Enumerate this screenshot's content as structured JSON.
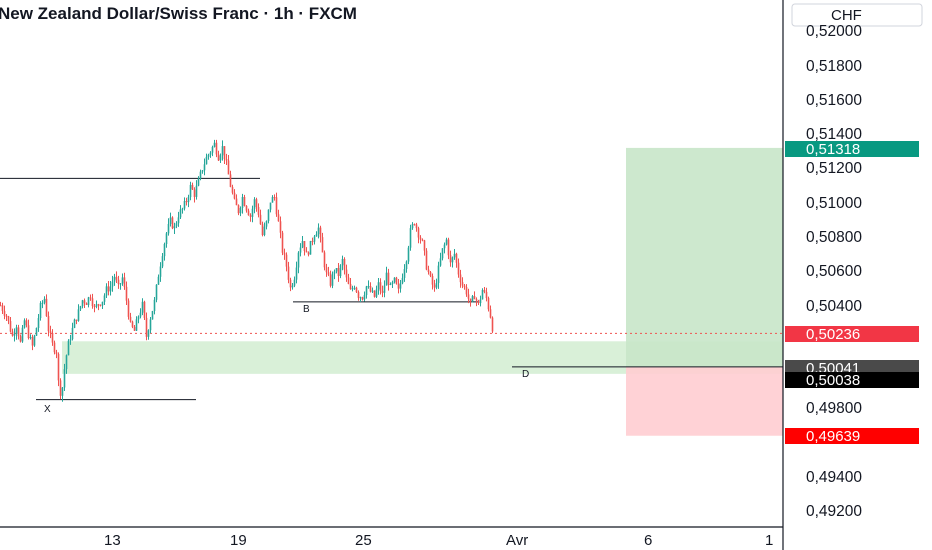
{
  "header": {
    "title": "New Zealand Dollar/Swiss Franc · 1h · FXCM"
  },
  "price_axis": {
    "currency": "CHF",
    "tick_labels": [
      "0,52000",
      "0,51800",
      "0,51600",
      "0,51400",
      "0,51200",
      "0,51000",
      "0,50800",
      "0,50600",
      "0,50400",
      "0,49800",
      "0,49400",
      "0,49200"
    ]
  },
  "time_axis": {
    "tick_labels": [
      "13",
      "19",
      "25",
      "Avr",
      "6",
      "1"
    ]
  },
  "badges": {
    "target": {
      "text": "0,51318",
      "color": "#089981"
    },
    "current": {
      "text": "0,50236",
      "color": "#f23645"
    },
    "level_a": {
      "text": "0,50041",
      "color": "#4a4a4a"
    },
    "level_b": {
      "text": "0,50038",
      "color": "#000000"
    },
    "stop": {
      "text": "0,49639",
      "color": "#ff0000"
    }
  },
  "annotations": {
    "x_label": "X",
    "b_label": "B",
    "d_label": "D"
  },
  "colors": {
    "up": "#26a69a",
    "down": "#ef5350",
    "profit_zone": "#c8e6c9",
    "loss_zone": "#ffcdd2",
    "demand_zone": "#d7efd6"
  },
  "chart_data": {
    "type": "candlestick",
    "title": "New Zealand Dollar/Swiss Franc · 1h · FXCM",
    "ylim": [
      0.4912,
      0.5204
    ],
    "horizontal_levels": [
      {
        "label": "",
        "value": 0.5114
      },
      {
        "label": "B",
        "value": 0.5042
      },
      {
        "label": "X",
        "value": 0.4985
      },
      {
        "label": "D",
        "value": 0.50041
      }
    ],
    "long_position": {
      "entry": 0.50041,
      "target": 0.51318,
      "stop": 0.49639
    },
    "zone": [
      0.5,
      0.5019
    ],
    "current_price": 0.50236,
    "swing_path": [
      [
        0,
        0.504
      ],
      [
        6,
        0.5034
      ],
      [
        12,
        0.5022
      ],
      [
        16,
        0.5029
      ],
      [
        20,
        0.5018
      ],
      [
        24,
        0.5031
      ],
      [
        28,
        0.5023
      ],
      [
        32,
        0.5016
      ],
      [
        36,
        0.5027
      ],
      [
        40,
        0.5039
      ],
      [
        44,
        0.5044
      ],
      [
        48,
        0.5026
      ],
      [
        52,
        0.5017
      ],
      [
        56,
        0.5013
      ],
      [
        58,
        0.4995
      ],
      [
        61,
        0.4987
      ],
      [
        64,
        0.5003
      ],
      [
        67,
        0.5015
      ],
      [
        70,
        0.5022
      ],
      [
        74,
        0.503
      ],
      [
        78,
        0.5036
      ],
      [
        82,
        0.5043
      ],
      [
        86,
        0.5042
      ],
      [
        90,
        0.5046
      ],
      [
        94,
        0.5038
      ],
      [
        98,
        0.5041
      ],
      [
        102,
        0.5043
      ],
      [
        106,
        0.5049
      ],
      [
        110,
        0.5051
      ],
      [
        114,
        0.5057
      ],
      [
        118,
        0.505
      ],
      [
        122,
        0.5056
      ],
      [
        126,
        0.5043
      ],
      [
        130,
        0.5028
      ],
      [
        134,
        0.5025
      ],
      [
        138,
        0.5034
      ],
      [
        142,
        0.504
      ],
      [
        146,
        0.5022
      ],
      [
        150,
        0.5033
      ],
      [
        154,
        0.5042
      ],
      [
        158,
        0.5058
      ],
      [
        162,
        0.5071
      ],
      [
        166,
        0.5082
      ],
      [
        170,
        0.5089
      ],
      [
        174,
        0.5085
      ],
      [
        178,
        0.5093
      ],
      [
        182,
        0.5096
      ],
      [
        186,
        0.5101
      ],
      [
        190,
        0.5109
      ],
      [
        194,
        0.5105
      ],
      [
        198,
        0.5112
      ],
      [
        202,
        0.512
      ],
      [
        206,
        0.5126
      ],
      [
        210,
        0.513
      ],
      [
        214,
        0.5134
      ],
      [
        218,
        0.5127
      ],
      [
        222,
        0.5132
      ],
      [
        226,
        0.5122
      ],
      [
        230,
        0.511
      ],
      [
        234,
        0.51
      ],
      [
        238,
        0.5095
      ],
      [
        242,
        0.5103
      ],
      [
        246,
        0.5097
      ],
      [
        250,
        0.5092
      ],
      [
        254,
        0.5101
      ],
      [
        258,
        0.5094
      ],
      [
        262,
        0.5081
      ],
      [
        266,
        0.5088
      ],
      [
        270,
        0.5101
      ],
      [
        274,
        0.5103
      ],
      [
        278,
        0.5088
      ],
      [
        282,
        0.5072
      ],
      [
        286,
        0.5063
      ],
      [
        290,
        0.505
      ],
      [
        294,
        0.5057
      ],
      [
        298,
        0.5072
      ],
      [
        302,
        0.5078
      ],
      [
        306,
        0.5069
      ],
      [
        310,
        0.5075
      ],
      [
        314,
        0.5082
      ],
      [
        318,
        0.5085
      ],
      [
        322,
        0.507
      ],
      [
        326,
        0.5058
      ],
      [
        330,
        0.5053
      ],
      [
        334,
        0.5061
      ],
      [
        338,
        0.5058
      ],
      [
        342,
        0.5066
      ],
      [
        346,
        0.5055
      ],
      [
        350,
        0.5048
      ],
      [
        354,
        0.5052
      ],
      [
        358,
        0.5046
      ],
      [
        362,
        0.5045
      ],
      [
        366,
        0.5051
      ],
      [
        370,
        0.5048
      ],
      [
        374,
        0.5045
      ],
      [
        378,
        0.5052
      ],
      [
        382,
        0.5046
      ],
      [
        386,
        0.5058
      ],
      [
        390,
        0.505
      ],
      [
        394,
        0.5054
      ],
      [
        398,
        0.5048
      ],
      [
        402,
        0.5058
      ],
      [
        406,
        0.5068
      ],
      [
        410,
        0.5083
      ],
      [
        414,
        0.5089
      ],
      [
        418,
        0.5082
      ],
      [
        422,
        0.5076
      ],
      [
        426,
        0.5063
      ],
      [
        430,
        0.5055
      ],
      [
        434,
        0.5049
      ],
      [
        438,
        0.5061
      ],
      [
        442,
        0.5072
      ],
      [
        446,
        0.5078
      ],
      [
        450,
        0.5064
      ],
      [
        454,
        0.507
      ],
      [
        458,
        0.5059
      ],
      [
        462,
        0.5052
      ],
      [
        466,
        0.5048
      ],
      [
        470,
        0.504
      ],
      [
        474,
        0.5046
      ],
      [
        478,
        0.504
      ],
      [
        482,
        0.5049
      ],
      [
        486,
        0.5044
      ],
      [
        490,
        0.5034
      ],
      [
        493,
        0.50236
      ]
    ]
  }
}
